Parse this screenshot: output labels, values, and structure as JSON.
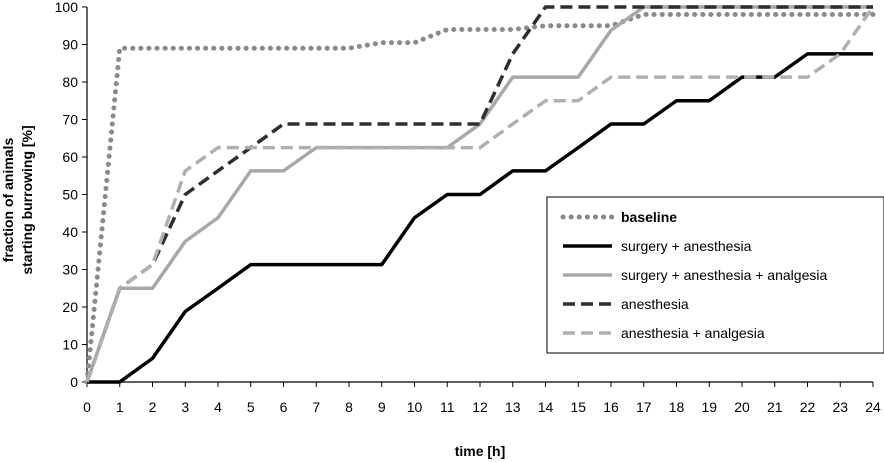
{
  "chart_data": {
    "type": "line",
    "title": "",
    "xlabel": "time [h]",
    "ylabel_lines": [
      "fraction of animals",
      "starting burrowing [%]"
    ],
    "xlim": [
      0,
      24
    ],
    "ylim": [
      0,
      100
    ],
    "x_ticks": [
      0,
      1,
      2,
      3,
      4,
      5,
      6,
      7,
      8,
      9,
      10,
      11,
      12,
      13,
      14,
      15,
      16,
      17,
      18,
      19,
      20,
      21,
      22,
      23,
      24
    ],
    "y_ticks": [
      0,
      10,
      20,
      30,
      40,
      50,
      60,
      70,
      80,
      90,
      100
    ],
    "grid": false,
    "legend_position": "right",
    "x": [
      0,
      1,
      2,
      3,
      4,
      5,
      6,
      7,
      8,
      9,
      10,
      11,
      12,
      13,
      14,
      15,
      16,
      17,
      18,
      19,
      20,
      21,
      22,
      23,
      24
    ],
    "series": [
      {
        "name": "baseline",
        "style": "dotted",
        "color": "#8a8a8a",
        "values": [
          0,
          89,
          89,
          89,
          89,
          89,
          89,
          89,
          89,
          90.5,
          90.5,
          94,
          94,
          94,
          95,
          95,
          95,
          98,
          98,
          98,
          98,
          98,
          98,
          98,
          98
        ]
      },
      {
        "name": "surgery + anesthesia",
        "style": "solid",
        "color": "#000000",
        "values": [
          0,
          0,
          6.3,
          18.8,
          25,
          31.3,
          31.3,
          31.3,
          31.3,
          31.3,
          43.8,
          50,
          50,
          56.3,
          56.3,
          62.5,
          68.8,
          68.8,
          75,
          75,
          81.3,
          81.3,
          87.5,
          87.5,
          87.5
        ]
      },
      {
        "name": "surgery + anesthesia + analgesia",
        "style": "solid",
        "color": "#a8a8a8",
        "values": [
          0,
          25,
          25,
          37.5,
          43.8,
          56.3,
          56.3,
          62.5,
          62.5,
          62.5,
          62.5,
          62.5,
          68.8,
          81.3,
          81.3,
          81.3,
          93.8,
          100,
          100,
          100,
          100,
          100,
          100,
          100,
          100
        ]
      },
      {
        "name": "anesthesia",
        "style": "dashed",
        "color": "#2e2e2e",
        "values": [
          0,
          25,
          31.3,
          50,
          56.3,
          62.5,
          68.8,
          68.8,
          68.8,
          68.8,
          68.8,
          68.8,
          68.8,
          87.5,
          100,
          100,
          100,
          100,
          100,
          100,
          100,
          100,
          100,
          100,
          100
        ]
      },
      {
        "name": "anesthesia + analgesia",
        "style": "dashed",
        "color": "#b0b0b0",
        "values": [
          0,
          25,
          31.3,
          56.3,
          62.5,
          62.5,
          62.5,
          62.5,
          62.5,
          62.5,
          62.5,
          62.5,
          62.5,
          68.8,
          75,
          75,
          81.3,
          81.3,
          81.3,
          81.3,
          81.3,
          81.3,
          81.3,
          87.5,
          100
        ]
      }
    ]
  }
}
